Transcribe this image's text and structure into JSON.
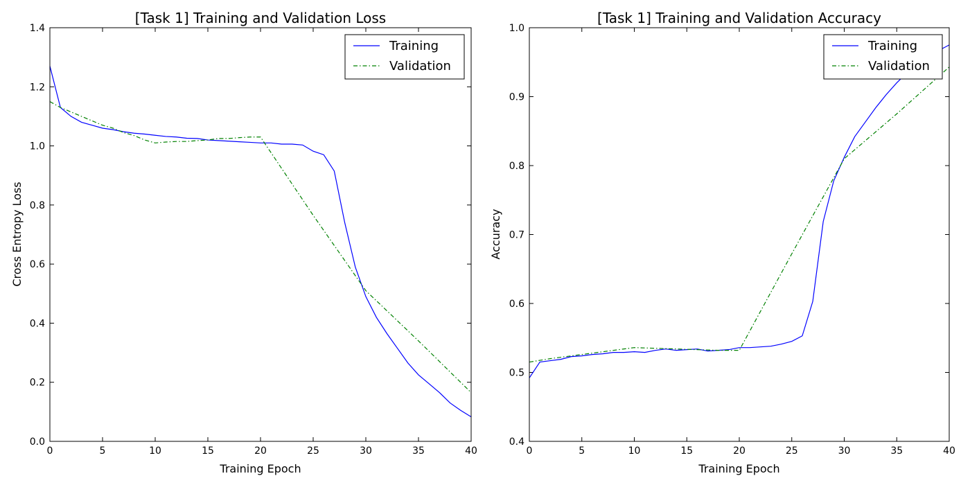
{
  "chart_data": [
    {
      "type": "line",
      "title": "[Task 1] Training and Validation Loss",
      "xlabel": "Training Epoch",
      "ylabel": "Cross Entropy Loss",
      "xlim": [
        0,
        40
      ],
      "ylim": [
        0,
        1.4
      ],
      "xticks": [
        0,
        5,
        10,
        15,
        20,
        25,
        30,
        35,
        40
      ],
      "yticks": [
        0.0,
        0.2,
        0.4,
        0.6,
        0.8,
        1.0,
        1.2,
        1.4
      ],
      "ytick_decimals": 1,
      "grid": false,
      "legend_position": "top-right",
      "series": [
        {
          "name": "Training",
          "color": "#0000ff",
          "style": "solid",
          "x": [
            0,
            1,
            2,
            3,
            4,
            5,
            6,
            7,
            8,
            9,
            10,
            11,
            12,
            13,
            14,
            15,
            16,
            17,
            18,
            19,
            20,
            21,
            22,
            23,
            24,
            25,
            26,
            27,
            28,
            29,
            30,
            31,
            32,
            33,
            34,
            35,
            36,
            37,
            38,
            39,
            40
          ],
          "y": [
            1.27,
            1.13,
            1.1,
            1.08,
            1.07,
            1.06,
            1.055,
            1.048,
            1.043,
            1.04,
            1.036,
            1.032,
            1.03,
            1.026,
            1.025,
            1.02,
            1.018,
            1.016,
            1.014,
            1.012,
            1.01,
            1.01,
            1.006,
            1.006,
            1.003,
            0.982,
            0.97,
            0.915,
            0.74,
            0.59,
            0.49,
            0.42,
            0.365,
            0.315,
            0.265,
            0.225,
            0.195,
            0.165,
            0.13,
            0.105,
            0.083
          ]
        },
        {
          "name": "Validation",
          "color": "#008000",
          "style": "dashdot",
          "x": [
            0,
            1,
            2,
            3,
            4,
            5,
            6,
            7,
            8,
            9,
            10,
            11,
            12,
            13,
            14,
            15,
            16,
            17,
            18,
            19,
            20,
            25,
            30,
            35,
            40
          ],
          "y": [
            1.15,
            1.13,
            1.115,
            1.1,
            1.085,
            1.07,
            1.06,
            1.045,
            1.035,
            1.02,
            1.01,
            1.013,
            1.015,
            1.015,
            1.018,
            1.02,
            1.025,
            1.025,
            1.028,
            1.03,
            1.03,
            0.765,
            0.51,
            0.34,
            0.165
          ]
        }
      ]
    },
    {
      "type": "line",
      "title": "[Task 1] Training and Validation Accuracy",
      "xlabel": "Training Epoch",
      "ylabel": "Accuracy",
      "xlim": [
        0,
        40
      ],
      "ylim": [
        0.4,
        1.0
      ],
      "xticks": [
        0,
        5,
        10,
        15,
        20,
        25,
        30,
        35,
        40
      ],
      "yticks": [
        0.4,
        0.5,
        0.6,
        0.7,
        0.8,
        0.9,
        1.0
      ],
      "ytick_decimals": 1,
      "grid": false,
      "legend_position": "top-right",
      "series": [
        {
          "name": "Training",
          "color": "#0000ff",
          "style": "solid",
          "x": [
            0,
            1,
            2,
            3,
            4,
            5,
            6,
            7,
            8,
            9,
            10,
            11,
            12,
            13,
            14,
            15,
            16,
            17,
            18,
            19,
            20,
            21,
            22,
            23,
            24,
            25,
            26,
            27,
            28,
            29,
            30,
            31,
            32,
            33,
            34,
            35,
            36,
            37,
            38,
            39,
            40
          ],
          "y": [
            0.492,
            0.515,
            0.517,
            0.519,
            0.523,
            0.524,
            0.526,
            0.527,
            0.529,
            0.529,
            0.53,
            0.529,
            0.532,
            0.534,
            0.532,
            0.533,
            0.534,
            0.531,
            0.532,
            0.533,
            0.536,
            0.536,
            0.537,
            0.538,
            0.541,
            0.545,
            0.553,
            0.603,
            0.719,
            0.778,
            0.812,
            0.842,
            0.863,
            0.884,
            0.903,
            0.92,
            0.935,
            0.948,
            0.958,
            0.967,
            0.975
          ]
        },
        {
          "name": "Validation",
          "color": "#008000",
          "style": "dashdot",
          "x": [
            0,
            2,
            4,
            6,
            8,
            10,
            12,
            14,
            16,
            18,
            20,
            25,
            30,
            35,
            40
          ],
          "y": [
            0.515,
            0.52,
            0.524,
            0.528,
            0.532,
            0.536,
            0.535,
            0.534,
            0.533,
            0.532,
            0.532,
            0.672,
            0.81,
            0.875,
            0.943
          ]
        }
      ]
    }
  ]
}
